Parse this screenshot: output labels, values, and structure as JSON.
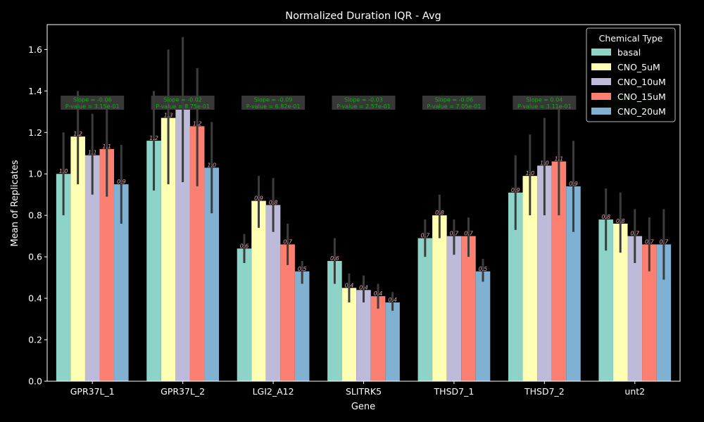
{
  "chart_data": {
    "type": "bar",
    "title": "Normalized Duration IQR - Avg",
    "xlabel": "Gene",
    "ylabel": "Mean of Replicates",
    "ylim": [
      0,
      1.72
    ],
    "yticks": [
      0.0,
      0.2,
      0.4,
      0.6,
      0.8,
      1.0,
      1.2,
      1.4,
      1.6
    ],
    "ytick_labels": [
      "0.0",
      "0.2",
      "0.4",
      "0.6",
      "0.8",
      "1.0",
      "1.2",
      "1.4",
      "1.6"
    ],
    "grid": false,
    "legend_title": "Chemical Type",
    "legend_position": "top-right",
    "categories": [
      "GPR37L_1",
      "GPR37L_2",
      "LGI2_A12",
      "SLITRK5",
      "THSD7_1",
      "THSD7_2",
      "unt2"
    ],
    "series": [
      {
        "name": "basal",
        "color": "#8dd3c7",
        "values": [
          1.0,
          1.16,
          0.64,
          0.58,
          0.69,
          0.91,
          0.78
        ],
        "err_low": [
          0.8,
          0.92,
          0.57,
          0.47,
          0.6,
          0.73,
          0.63
        ],
        "err_high": [
          1.2,
          1.4,
          0.71,
          0.69,
          0.78,
          1.09,
          0.93
        ],
        "labels": [
          "1.0",
          "1.2",
          "0.6",
          "0.6",
          "0.7",
          "0.9",
          "0.8"
        ]
      },
      {
        "name": "CNO_5uM",
        "color": "#ffffb3",
        "values": [
          1.18,
          1.27,
          0.87,
          0.45,
          0.8,
          0.99,
          0.76
        ],
        "err_low": [
          0.95,
          0.95,
          0.74,
          0.38,
          0.69,
          0.8,
          0.62
        ],
        "err_high": [
          1.4,
          1.6,
          0.99,
          0.52,
          0.9,
          1.19,
          0.91
        ],
        "labels": [
          "1.2",
          "1.3",
          "0.9",
          "0.4",
          "0.8",
          "1.0",
          "0.8"
        ]
      },
      {
        "name": "CNO_10uM",
        "color": "#bebada",
        "values": [
          1.09,
          1.31,
          0.85,
          0.44,
          0.7,
          1.04,
          0.7
        ],
        "err_low": [
          0.9,
          0.96,
          0.72,
          0.38,
          0.61,
          0.8,
          0.57
        ],
        "err_high": [
          1.29,
          1.66,
          0.98,
          0.51,
          0.78,
          1.27,
          0.83
        ],
        "labels": [
          "1.1",
          "1.3",
          "0.8",
          "0.4",
          "0.7",
          "1.0",
          "0.7"
        ]
      },
      {
        "name": "CNO_15uM",
        "color": "#fb8072",
        "values": [
          1.12,
          1.23,
          0.66,
          0.41,
          0.7,
          1.06,
          0.66
        ],
        "err_low": [
          0.89,
          0.94,
          0.56,
          0.35,
          0.6,
          0.8,
          0.53
        ],
        "err_high": [
          1.36,
          1.51,
          0.76,
          0.47,
          0.79,
          1.33,
          0.79
        ],
        "labels": [
          "1.1",
          "1.2",
          "0.7",
          "0.4",
          "0.7",
          "1.1",
          "0.7"
        ]
      },
      {
        "name": "CNO_20uM",
        "color": "#80b1d3",
        "values": [
          0.95,
          1.03,
          0.53,
          0.38,
          0.53,
          0.94,
          0.66
        ],
        "err_low": [
          0.76,
          0.81,
          0.47,
          0.34,
          0.48,
          0.72,
          0.49
        ],
        "err_high": [
          1.14,
          1.25,
          0.58,
          0.43,
          0.59,
          1.16,
          0.83
        ],
        "labels": [
          "0.9",
          "1.0",
          "0.5",
          "0.4",
          "0.5",
          "0.9",
          "0.7"
        ]
      }
    ],
    "annotations": [
      {
        "category": "GPR37L_1",
        "line1": "Slope = -0.06",
        "line2": "P-value = 3.15e-01"
      },
      {
        "category": "GPR37L_2",
        "line1": "Slope = -0.02",
        "line2": "P-value = 8.75e-01"
      },
      {
        "category": "LGI2_A12",
        "line1": "Slope = -0.09",
        "line2": "P-value = 6.82e-01"
      },
      {
        "category": "SLITRK5",
        "line1": "Slope = -0.03",
        "line2": "P-value = 2.57e-01"
      },
      {
        "category": "THSD7_1",
        "line1": "Slope = -0.06",
        "line2": "P-value = 7.05e-01"
      },
      {
        "category": "THSD7_2",
        "line1": "Slope = 0.04",
        "line2": "P-value = 3.11e-01"
      },
      {
        "category": "unt2",
        "line1": "Slope = -0.05",
        "line2": "P-value = 1.56e-01"
      }
    ],
    "colors": {
      "background": "#000000",
      "axes": "#ffffff",
      "errorbar": "#3c3c3c",
      "bar_label": "#e8a0a8",
      "annotation_text": "#10b010",
      "annotation_box": "#3d3d3d"
    }
  }
}
